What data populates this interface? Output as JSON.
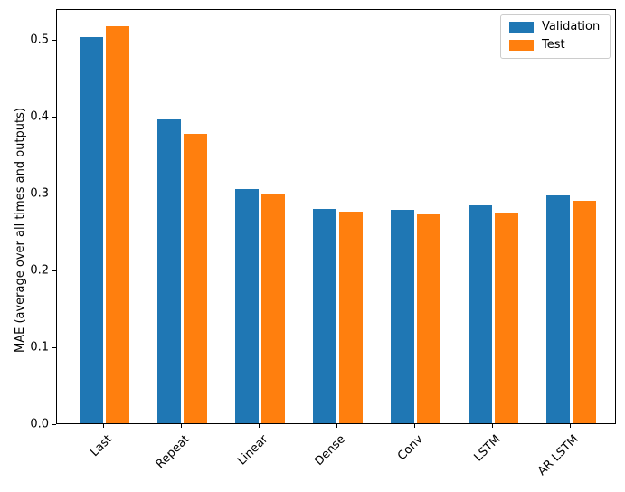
{
  "chart_data": {
    "type": "bar",
    "title": "",
    "xlabel": "",
    "ylabel": "MAE (average over all times and outputs)",
    "categories": [
      "Last",
      "Repeat",
      "Linear",
      "Dense",
      "Conv",
      "LSTM",
      "AR LSTM"
    ],
    "series": [
      {
        "name": "Validation",
        "color": "#1f77b4",
        "values": [
          0.502,
          0.395,
          0.305,
          0.279,
          0.278,
          0.283,
          0.296
        ]
      },
      {
        "name": "Test",
        "color": "#ff7f0e",
        "values": [
          0.516,
          0.376,
          0.298,
          0.275,
          0.272,
          0.274,
          0.289
        ]
      }
    ],
    "ylim": [
      0,
      0.54
    ],
    "yticks": [
      0.0,
      0.1,
      0.2,
      0.3,
      0.4,
      0.5
    ],
    "ytick_labels": [
      "0.0",
      "0.1",
      "0.2",
      "0.3",
      "0.4",
      "0.5"
    ],
    "xtick_rotation": 45,
    "grid": false,
    "legend": {
      "position": "upper right",
      "entries": [
        "Validation",
        "Test"
      ]
    }
  }
}
